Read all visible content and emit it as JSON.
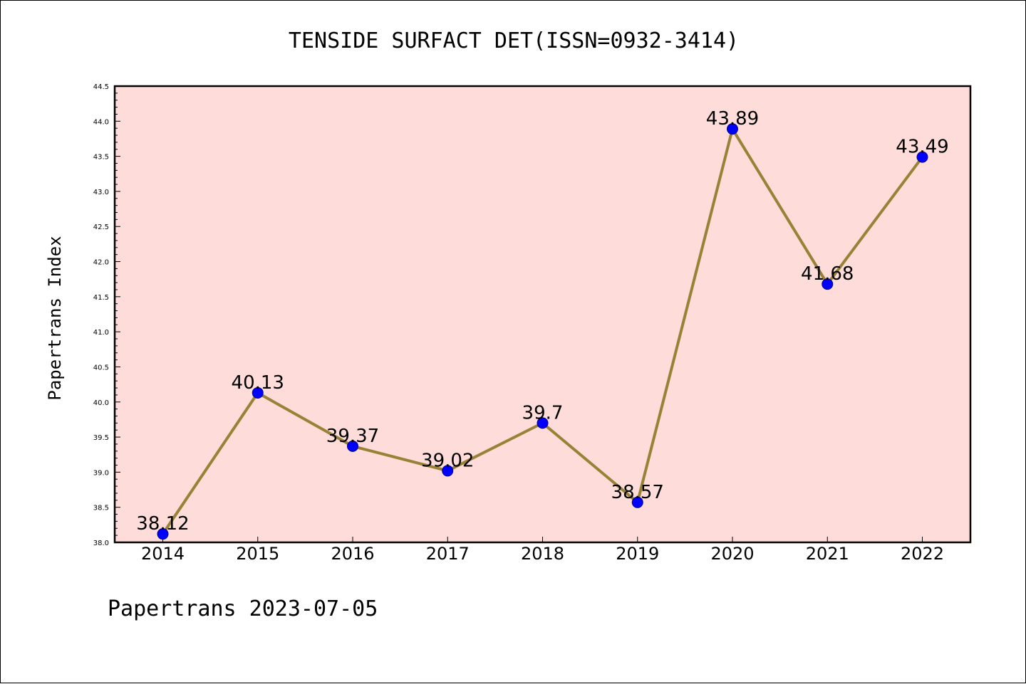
{
  "chart_data": {
    "type": "line",
    "title": "TENSIDE SURFACT DET(ISSN=0932-3414)",
    "ylabel": "Papertrans Index",
    "xlabel": "",
    "footer": "Papertrans 2023-07-05",
    "categories": [
      "2014",
      "2015",
      "2016",
      "2017",
      "2018",
      "2019",
      "2020",
      "2021",
      "2022"
    ],
    "series": [
      {
        "values": [
          38.12,
          40.13,
          39.37,
          39.02,
          39.7,
          38.57,
          43.89,
          41.68,
          43.49
        ],
        "labels": [
          "38.12",
          "40.13",
          "39.37",
          "39.02",
          "39.7",
          "38.57",
          "43.89",
          "41.68",
          "43.49"
        ]
      }
    ],
    "ylim": [
      38.0,
      44.5
    ],
    "yticks": [
      "38.0",
      "38.5",
      "39.0",
      "39.5",
      "40.0",
      "40.5",
      "41.0",
      "41.5",
      "42.0",
      "42.5",
      "43.0",
      "43.5",
      "44.0",
      "44.5"
    ],
    "grid": false,
    "colors": {
      "plot_background": "#fddcd9",
      "line": "#998236",
      "marker": "#0000ff",
      "axes": "#000000"
    }
  }
}
